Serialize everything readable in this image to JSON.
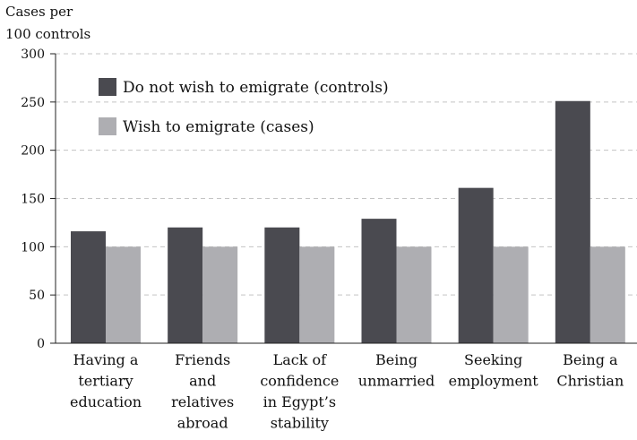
{
  "chart_data": {
    "type": "bar",
    "title": "",
    "ylabel_lines": [
      "Cases per",
      "100 controls"
    ],
    "xlabel": "",
    "ylim": [
      0,
      300
    ],
    "yticks": [
      0,
      50,
      100,
      150,
      200,
      250,
      300
    ],
    "grid": true,
    "legend_position": "top-left",
    "categories": [
      [
        "Having a",
        "tertiary",
        "education"
      ],
      [
        "Friends",
        "and",
        "relatives",
        "abroad"
      ],
      [
        "Lack of",
        "confidence",
        "in Egypt’s",
        "stability"
      ],
      [
        "Being",
        "unmarried"
      ],
      [
        "Seeking",
        "employment"
      ],
      [
        "Being a",
        "Christian"
      ]
    ],
    "series": [
      {
        "name": "Do not wish to emigrate (controls)",
        "color": "#4a4a50",
        "values": [
          116,
          120,
          120,
          129,
          161,
          251
        ]
      },
      {
        "name": "Wish to emigrate (cases)",
        "color": "#aeaeb2",
        "values": [
          100,
          100,
          100,
          100,
          100,
          100
        ]
      }
    ]
  }
}
